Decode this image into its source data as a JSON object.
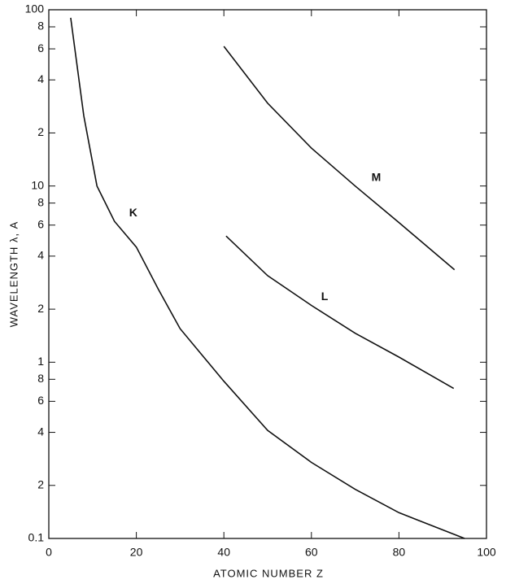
{
  "chart_data": {
    "type": "line",
    "xlabel": "ATOMIC NUMBER Z",
    "ylabel": "WAVELENGTH λ, A",
    "xlim": [
      0,
      100
    ],
    "xticks": [
      0,
      20,
      40,
      60,
      80,
      100
    ],
    "ylim": [
      0.1,
      100
    ],
    "log_y": true,
    "yticks": [
      100,
      {
        "value": 80,
        "label": "8"
      },
      {
        "value": 60,
        "label": "6"
      },
      {
        "value": 40,
        "label": "4"
      },
      {
        "value": 20,
        "label": "2"
      },
      10,
      {
        "value": 8,
        "label": "8"
      },
      {
        "value": 6,
        "label": "6"
      },
      {
        "value": 4,
        "label": "4"
      },
      {
        "value": 2,
        "label": "2"
      },
      1,
      {
        "value": 0.8,
        "label": "8"
      },
      {
        "value": 0.6,
        "label": "6"
      },
      {
        "value": 0.4,
        "label": "4"
      },
      {
        "value": 0.2,
        "label": "2"
      },
      0.1
    ],
    "series": [
      {
        "name": "K",
        "color": "#111111",
        "x": [
          5,
          8,
          11,
          15,
          20,
          25,
          30,
          40,
          50,
          60,
          70,
          80,
          95
        ],
        "values": [
          90,
          25,
          10,
          6.3,
          4.5,
          2.6,
          1.55,
          0.78,
          0.41,
          0.27,
          0.19,
          0.14,
          0.1
        ]
      },
      {
        "name": "L",
        "color": "#111111",
        "x": [
          40.5,
          50,
          60,
          70,
          80,
          92.5
        ],
        "values": [
          5.2,
          3.1,
          2.1,
          1.46,
          1.07,
          0.71
        ]
      },
      {
        "name": "M",
        "color": "#111111",
        "x": [
          40,
          50,
          60,
          70,
          80,
          92.7
        ],
        "values": [
          62,
          29.5,
          16.4,
          10,
          6.2,
          3.35
        ]
      }
    ]
  }
}
